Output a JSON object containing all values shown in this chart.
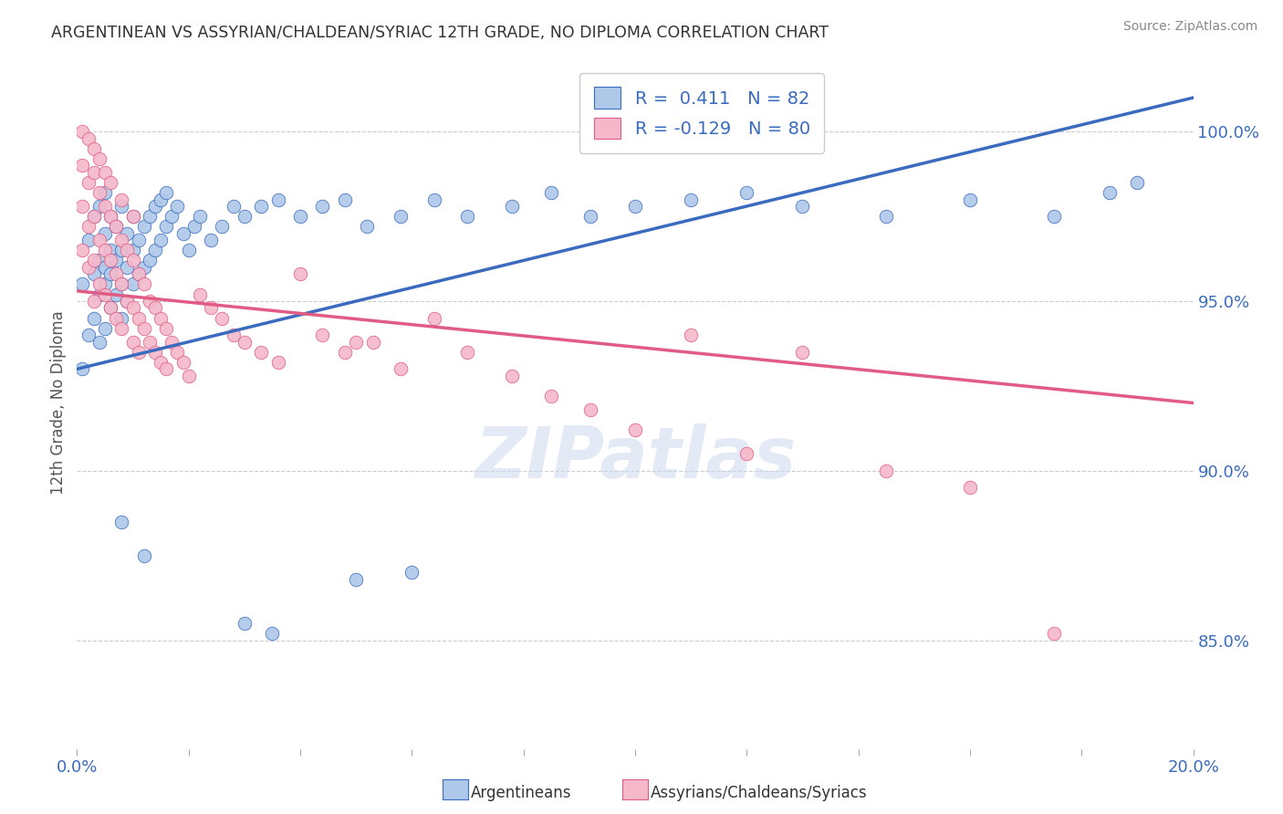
{
  "title": "ARGENTINEAN VS ASSYRIAN/CHALDEAN/SYRIAC 12TH GRADE, NO DIPLOMA CORRELATION CHART",
  "source": "Source: ZipAtlas.com",
  "ylabel": "12th Grade, No Diploma",
  "xlim": [
    0.0,
    0.2
  ],
  "ylim": [
    0.818,
    1.022
  ],
  "yticks": [
    0.85,
    0.9,
    0.95,
    1.0
  ],
  "yticklabels": [
    "85.0%",
    "90.0%",
    "95.0%",
    "100.0%"
  ],
  "blue_R": 0.411,
  "blue_N": 82,
  "pink_R": -0.129,
  "pink_N": 80,
  "blue_color": "#adc8e8",
  "pink_color": "#f5b8ca",
  "blue_line_color": "#3a6bbf",
  "pink_line_color": "#e05c85",
  "legend_label_blue": "Argentineans",
  "legend_label_pink": "Assyrians/Chaldeans/Syriacs",
  "blue_points_x": [
    0.001,
    0.001,
    0.002,
    0.002,
    0.003,
    0.003,
    0.003,
    0.004,
    0.004,
    0.004,
    0.004,
    0.005,
    0.005,
    0.005,
    0.005,
    0.005,
    0.006,
    0.006,
    0.006,
    0.006,
    0.007,
    0.007,
    0.007,
    0.008,
    0.008,
    0.008,
    0.008,
    0.009,
    0.009,
    0.009,
    0.01,
    0.01,
    0.01,
    0.011,
    0.011,
    0.012,
    0.012,
    0.013,
    0.013,
    0.014,
    0.014,
    0.015,
    0.015,
    0.016,
    0.016,
    0.017,
    0.018,
    0.019,
    0.02,
    0.021,
    0.022,
    0.024,
    0.026,
    0.028,
    0.03,
    0.033,
    0.036,
    0.04,
    0.044,
    0.048,
    0.052,
    0.058,
    0.064,
    0.07,
    0.078,
    0.085,
    0.092,
    0.1,
    0.11,
    0.12,
    0.13,
    0.145,
    0.16,
    0.175,
    0.185,
    0.19,
    0.05,
    0.06,
    0.03,
    0.035,
    0.008,
    0.012
  ],
  "blue_points_y": [
    0.93,
    0.955,
    0.94,
    0.968,
    0.945,
    0.958,
    0.975,
    0.938,
    0.952,
    0.962,
    0.978,
    0.942,
    0.955,
    0.96,
    0.97,
    0.982,
    0.948,
    0.958,
    0.965,
    0.975,
    0.952,
    0.962,
    0.972,
    0.945,
    0.955,
    0.965,
    0.978,
    0.95,
    0.96,
    0.97,
    0.955,
    0.965,
    0.975,
    0.958,
    0.968,
    0.96,
    0.972,
    0.962,
    0.975,
    0.965,
    0.978,
    0.968,
    0.98,
    0.972,
    0.982,
    0.975,
    0.978,
    0.97,
    0.965,
    0.972,
    0.975,
    0.968,
    0.972,
    0.978,
    0.975,
    0.978,
    0.98,
    0.975,
    0.978,
    0.98,
    0.972,
    0.975,
    0.98,
    0.975,
    0.978,
    0.982,
    0.975,
    0.978,
    0.98,
    0.982,
    0.978,
    0.975,
    0.98,
    0.975,
    0.982,
    0.985,
    0.868,
    0.87,
    0.855,
    0.852,
    0.885,
    0.875
  ],
  "pink_points_x": [
    0.001,
    0.001,
    0.001,
    0.002,
    0.002,
    0.002,
    0.003,
    0.003,
    0.003,
    0.003,
    0.004,
    0.004,
    0.004,
    0.005,
    0.005,
    0.005,
    0.006,
    0.006,
    0.006,
    0.007,
    0.007,
    0.007,
    0.008,
    0.008,
    0.008,
    0.009,
    0.009,
    0.01,
    0.01,
    0.01,
    0.011,
    0.011,
    0.011,
    0.012,
    0.012,
    0.013,
    0.013,
    0.014,
    0.014,
    0.015,
    0.015,
    0.016,
    0.016,
    0.017,
    0.018,
    0.019,
    0.02,
    0.022,
    0.024,
    0.026,
    0.028,
    0.03,
    0.033,
    0.036,
    0.04,
    0.044,
    0.048,
    0.053,
    0.058,
    0.064,
    0.07,
    0.078,
    0.085,
    0.092,
    0.1,
    0.11,
    0.12,
    0.13,
    0.145,
    0.16,
    0.001,
    0.002,
    0.003,
    0.004,
    0.005,
    0.006,
    0.008,
    0.01,
    0.175,
    0.05
  ],
  "pink_points_y": [
    0.99,
    0.978,
    0.965,
    0.985,
    0.972,
    0.96,
    0.988,
    0.975,
    0.962,
    0.95,
    0.982,
    0.968,
    0.955,
    0.978,
    0.965,
    0.952,
    0.975,
    0.962,
    0.948,
    0.972,
    0.958,
    0.945,
    0.968,
    0.955,
    0.942,
    0.965,
    0.95,
    0.962,
    0.948,
    0.938,
    0.958,
    0.945,
    0.935,
    0.955,
    0.942,
    0.95,
    0.938,
    0.948,
    0.935,
    0.945,
    0.932,
    0.942,
    0.93,
    0.938,
    0.935,
    0.932,
    0.928,
    0.952,
    0.948,
    0.945,
    0.94,
    0.938,
    0.935,
    0.932,
    0.958,
    0.94,
    0.935,
    0.938,
    0.93,
    0.945,
    0.935,
    0.928,
    0.922,
    0.918,
    0.912,
    0.94,
    0.905,
    0.935,
    0.9,
    0.895,
    1.0,
    0.998,
    0.995,
    0.992,
    0.988,
    0.985,
    0.98,
    0.975,
    0.852,
    0.938
  ],
  "blue_trend_x0": 0.0,
  "blue_trend_y0": 0.93,
  "blue_trend_x1": 0.2,
  "blue_trend_y1": 1.01,
  "pink_trend_x0": 0.0,
  "pink_trend_y0": 0.953,
  "pink_trend_x1": 0.2,
  "pink_trend_y1": 0.92
}
